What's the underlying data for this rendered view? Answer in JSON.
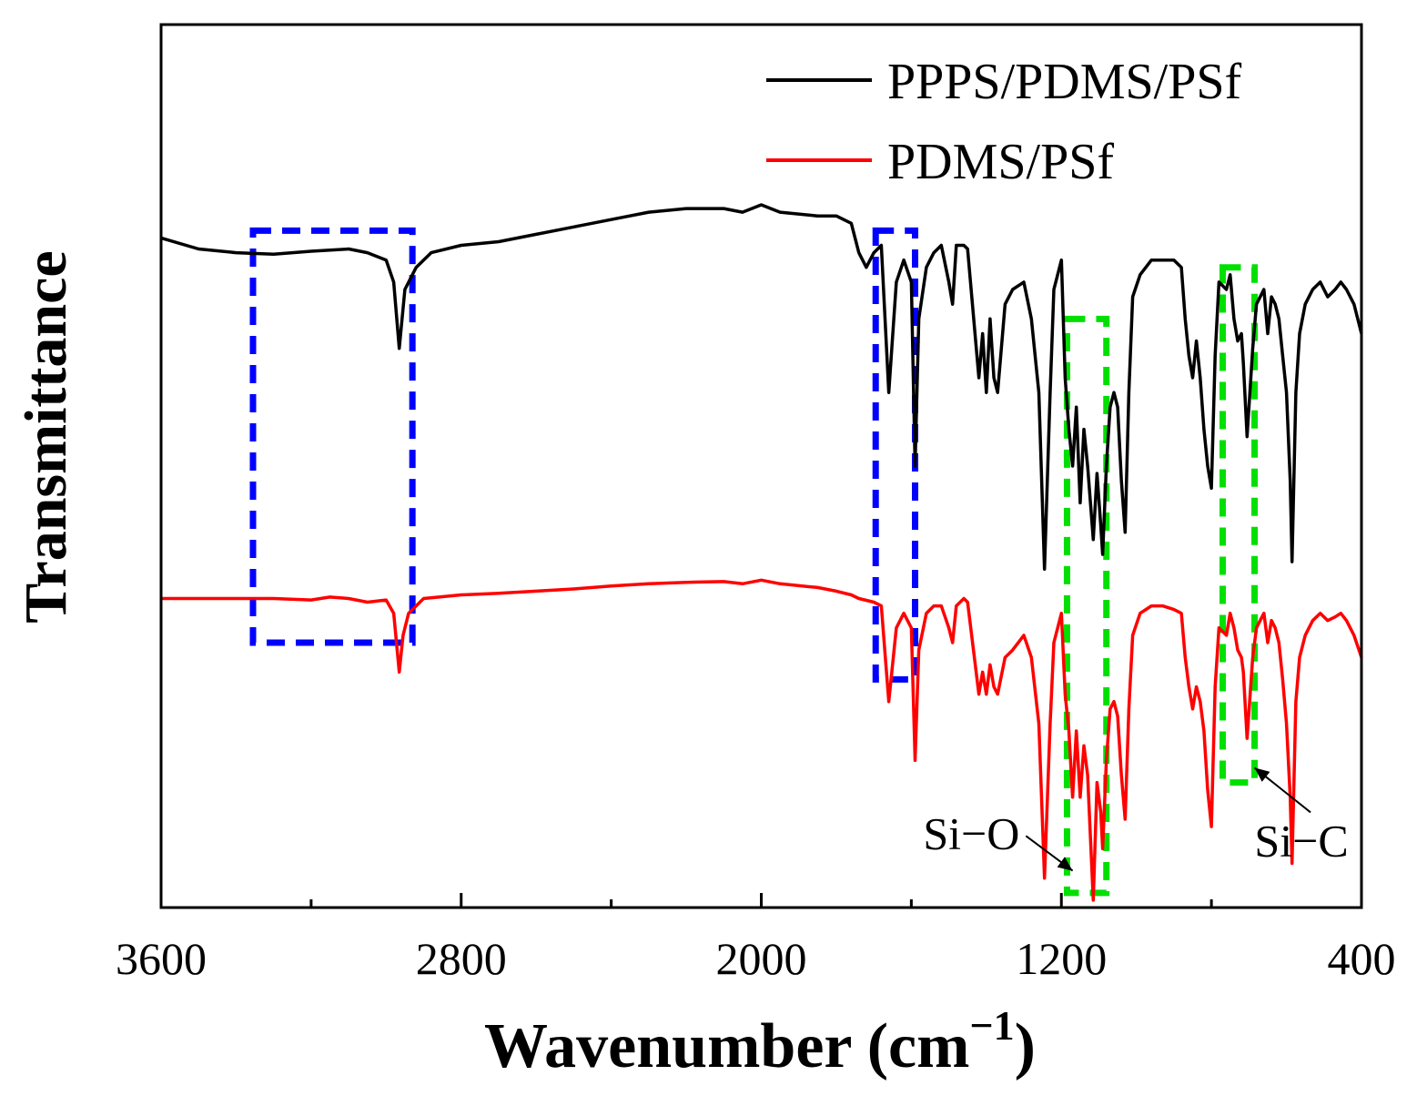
{
  "chart_data": {
    "type": "line",
    "title": "",
    "xlabel": "Wavenumber (cm",
    "xlabel_sup": "−1",
    "xlabel_close": ")",
    "ylabel": "Transmittance",
    "xlim": [
      3600,
      400
    ],
    "x_ticks": [
      3600,
      2800,
      2000,
      1200,
      400
    ],
    "x_tick_labels": [
      "3600",
      "2800",
      "2000",
      "1200",
      "400"
    ],
    "y_ticks_shown": false,
    "legend_position": "top-right",
    "series": [
      {
        "name": "PPPS/PDMS/PSf",
        "color": "#000000",
        "baseline": 3.2,
        "points": [
          [
            3600,
            2.9
          ],
          [
            3500,
            3.05
          ],
          [
            3400,
            3.1
          ],
          [
            3300,
            3.12
          ],
          [
            3200,
            3.08
          ],
          [
            3100,
            3.05
          ],
          [
            3050,
            3.1
          ],
          [
            3000,
            3.2
          ],
          [
            2980,
            3.5
          ],
          [
            2965,
            4.4
          ],
          [
            2950,
            3.6
          ],
          [
            2920,
            3.3
          ],
          [
            2880,
            3.1
          ],
          [
            2800,
            3.0
          ],
          [
            2700,
            2.95
          ],
          [
            2600,
            2.85
          ],
          [
            2500,
            2.75
          ],
          [
            2400,
            2.65
          ],
          [
            2300,
            2.55
          ],
          [
            2200,
            2.5
          ],
          [
            2100,
            2.5
          ],
          [
            2050,
            2.55
          ],
          [
            2000,
            2.45
          ],
          [
            1950,
            2.55
          ],
          [
            1850,
            2.6
          ],
          [
            1800,
            2.6
          ],
          [
            1760,
            2.7
          ],
          [
            1740,
            3.1
          ],
          [
            1720,
            3.3
          ],
          [
            1700,
            3.1
          ],
          [
            1680,
            3.0
          ],
          [
            1660,
            5.0
          ],
          [
            1640,
            3.5
          ],
          [
            1620,
            3.2
          ],
          [
            1600,
            3.5
          ],
          [
            1590,
            6.0
          ],
          [
            1580,
            4.0
          ],
          [
            1560,
            3.3
          ],
          [
            1540,
            3.1
          ],
          [
            1520,
            3.0
          ],
          [
            1500,
            3.5
          ],
          [
            1490,
            3.8
          ],
          [
            1480,
            3.0
          ],
          [
            1460,
            3.0
          ],
          [
            1450,
            3.05
          ],
          [
            1420,
            4.8
          ],
          [
            1410,
            4.2
          ],
          [
            1400,
            5.0
          ],
          [
            1390,
            4.0
          ],
          [
            1380,
            4.8
          ],
          [
            1370,
            5.0
          ],
          [
            1350,
            3.8
          ],
          [
            1330,
            3.6
          ],
          [
            1300,
            3.5
          ],
          [
            1280,
            4.0
          ],
          [
            1260,
            5.0
          ],
          [
            1245,
            7.4
          ],
          [
            1230,
            5.0
          ],
          [
            1220,
            3.6
          ],
          [
            1200,
            3.2
          ],
          [
            1190,
            4.8
          ],
          [
            1180,
            5.5
          ],
          [
            1170,
            6.0
          ],
          [
            1160,
            5.2
          ],
          [
            1150,
            6.5
          ],
          [
            1140,
            5.5
          ],
          [
            1130,
            6.0
          ],
          [
            1115,
            7.0
          ],
          [
            1105,
            6.1
          ],
          [
            1095,
            6.8
          ],
          [
            1090,
            7.2
          ],
          [
            1080,
            6.0
          ],
          [
            1070,
            5.2
          ],
          [
            1060,
            5.0
          ],
          [
            1050,
            5.2
          ],
          [
            1040,
            6.2
          ],
          [
            1030,
            6.9
          ],
          [
            1020,
            5.0
          ],
          [
            1010,
            3.7
          ],
          [
            990,
            3.4
          ],
          [
            960,
            3.2
          ],
          [
            930,
            3.2
          ],
          [
            900,
            3.2
          ],
          [
            880,
            3.3
          ],
          [
            870,
            4.0
          ],
          [
            860,
            4.5
          ],
          [
            850,
            4.8
          ],
          [
            840,
            4.3
          ],
          [
            830,
            4.8
          ],
          [
            820,
            5.5
          ],
          [
            810,
            6.0
          ],
          [
            800,
            6.3
          ],
          [
            790,
            4.5
          ],
          [
            780,
            3.5
          ],
          [
            760,
            3.6
          ],
          [
            750,
            3.4
          ],
          [
            740,
            4.0
          ],
          [
            730,
            4.3
          ],
          [
            720,
            4.2
          ],
          [
            715,
            4.6
          ],
          [
            705,
            5.6
          ],
          [
            690,
            4.4
          ],
          [
            680,
            3.8
          ],
          [
            670,
            3.7
          ],
          [
            660,
            3.6
          ],
          [
            650,
            4.2
          ],
          [
            640,
            3.7
          ],
          [
            630,
            3.8
          ],
          [
            620,
            4.0
          ],
          [
            610,
            4.5
          ],
          [
            600,
            5.0
          ],
          [
            590,
            6.2
          ],
          [
            585,
            7.3
          ],
          [
            575,
            5.0
          ],
          [
            565,
            4.2
          ],
          [
            550,
            3.8
          ],
          [
            530,
            3.6
          ],
          [
            510,
            3.5
          ],
          [
            490,
            3.7
          ],
          [
            470,
            3.6
          ],
          [
            455,
            3.5
          ],
          [
            440,
            3.6
          ],
          [
            420,
            3.8
          ],
          [
            400,
            4.2
          ]
        ]
      },
      {
        "name": "PDMS/PSf",
        "color": "#ff0000",
        "baseline": 7.8,
        "points": [
          [
            3600,
            7.8
          ],
          [
            3500,
            7.8
          ],
          [
            3300,
            7.8
          ],
          [
            3200,
            7.82
          ],
          [
            3150,
            7.78
          ],
          [
            3100,
            7.8
          ],
          [
            3050,
            7.85
          ],
          [
            3000,
            7.82
          ],
          [
            2980,
            8.0
          ],
          [
            2965,
            8.8
          ],
          [
            2955,
            8.3
          ],
          [
            2940,
            8.0
          ],
          [
            2920,
            7.9
          ],
          [
            2900,
            7.8
          ],
          [
            2800,
            7.75
          ],
          [
            2700,
            7.73
          ],
          [
            2600,
            7.7
          ],
          [
            2500,
            7.67
          ],
          [
            2400,
            7.63
          ],
          [
            2300,
            7.6
          ],
          [
            2200,
            7.58
          ],
          [
            2100,
            7.57
          ],
          [
            2050,
            7.6
          ],
          [
            2000,
            7.55
          ],
          [
            1950,
            7.6
          ],
          [
            1850,
            7.65
          ],
          [
            1800,
            7.7
          ],
          [
            1760,
            7.75
          ],
          [
            1740,
            7.8
          ],
          [
            1700,
            7.85
          ],
          [
            1680,
            7.9
          ],
          [
            1660,
            9.2
          ],
          [
            1640,
            8.2
          ],
          [
            1620,
            8.0
          ],
          [
            1600,
            8.2
          ],
          [
            1590,
            10.0
          ],
          [
            1580,
            8.5
          ],
          [
            1560,
            8.0
          ],
          [
            1540,
            7.9
          ],
          [
            1520,
            7.9
          ],
          [
            1500,
            8.2
          ],
          [
            1490,
            8.4
          ],
          [
            1480,
            7.9
          ],
          [
            1460,
            7.8
          ],
          [
            1450,
            7.85
          ],
          [
            1420,
            9.1
          ],
          [
            1410,
            8.8
          ],
          [
            1400,
            9.1
          ],
          [
            1390,
            8.7
          ],
          [
            1380,
            9.0
          ],
          [
            1370,
            9.1
          ],
          [
            1350,
            8.6
          ],
          [
            1330,
            8.5
          ],
          [
            1300,
            8.3
          ],
          [
            1280,
            8.6
          ],
          [
            1260,
            9.5
          ],
          [
            1245,
            11.6
          ],
          [
            1230,
            9.5
          ],
          [
            1220,
            8.4
          ],
          [
            1200,
            8.0
          ],
          [
            1190,
            9.1
          ],
          [
            1180,
            9.6
          ],
          [
            1170,
            10.5
          ],
          [
            1160,
            9.6
          ],
          [
            1150,
            10.5
          ],
          [
            1140,
            9.8
          ],
          [
            1130,
            10.2
          ],
          [
            1115,
            11.9
          ],
          [
            1105,
            10.3
          ],
          [
            1095,
            10.7
          ],
          [
            1090,
            11.2
          ],
          [
            1080,
            10.0
          ],
          [
            1070,
            9.3
          ],
          [
            1060,
            9.2
          ],
          [
            1050,
            9.4
          ],
          [
            1040,
            10.2
          ],
          [
            1030,
            10.8
          ],
          [
            1020,
            9.3
          ],
          [
            1010,
            8.3
          ],
          [
            990,
            8.0
          ],
          [
            960,
            7.9
          ],
          [
            930,
            7.9
          ],
          [
            900,
            7.95
          ],
          [
            880,
            8.0
          ],
          [
            870,
            8.6
          ],
          [
            860,
            9.0
          ],
          [
            850,
            9.3
          ],
          [
            840,
            9.0
          ],
          [
            830,
            9.2
          ],
          [
            820,
            9.6
          ],
          [
            810,
            10.4
          ],
          [
            800,
            10.9
          ],
          [
            790,
            9.0
          ],
          [
            780,
            8.2
          ],
          [
            760,
            8.3
          ],
          [
            750,
            8.0
          ],
          [
            740,
            8.2
          ],
          [
            730,
            8.5
          ],
          [
            720,
            8.6
          ],
          [
            715,
            8.8
          ],
          [
            705,
            9.7
          ],
          [
            690,
            8.6
          ],
          [
            680,
            8.2
          ],
          [
            670,
            8.1
          ],
          [
            660,
            8.0
          ],
          [
            650,
            8.4
          ],
          [
            640,
            8.1
          ],
          [
            630,
            8.2
          ],
          [
            620,
            8.4
          ],
          [
            610,
            8.9
          ],
          [
            600,
            9.5
          ],
          [
            590,
            10.5
          ],
          [
            585,
            11.4
          ],
          [
            575,
            9.2
          ],
          [
            565,
            8.6
          ],
          [
            550,
            8.3
          ],
          [
            530,
            8.1
          ],
          [
            510,
            8.0
          ],
          [
            490,
            8.1
          ],
          [
            470,
            8.05
          ],
          [
            455,
            8.0
          ],
          [
            440,
            8.1
          ],
          [
            420,
            8.3
          ],
          [
            400,
            8.6
          ]
        ]
      }
    ],
    "highlight_boxes": [
      {
        "color": "#0000ff",
        "x_from": 3355,
        "x_to": 2930,
        "y_from": 2.8,
        "y_to": 8.4
      },
      {
        "color": "#0000ff",
        "x_from": 1695,
        "x_to": 1590,
        "y_from": 2.8,
        "y_to": 8.9
      },
      {
        "color": "#00e000",
        "x_from": 1185,
        "x_to": 1080,
        "y_from": 4.0,
        "y_to": 11.8
      },
      {
        "color": "#00e000",
        "x_from": 770,
        "x_to": 685,
        "y_from": 3.3,
        "y_to": 10.3
      }
    ],
    "annotations": [
      {
        "text": "Si−O",
        "label_x": 1440,
        "label_y": 11.2,
        "arrow_to_x": 1170,
        "arrow_to_y": 11.5
      },
      {
        "text": "Si−C",
        "label_x": 560,
        "label_y": 11.3,
        "arrow_to_x": 685,
        "arrow_to_y": 10.1
      }
    ],
    "ylim": [
      12,
      0
    ]
  }
}
